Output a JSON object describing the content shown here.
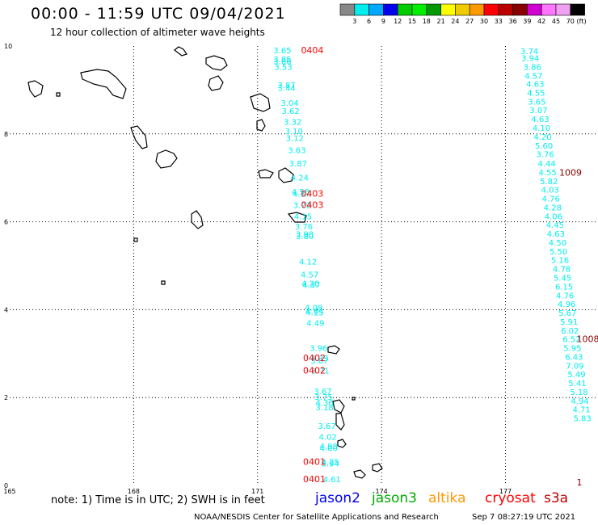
{
  "title": "00:00 - 11:59 UTC 09/04/2021",
  "subtitle": "12 hour collection of altimeter wave heights",
  "colorbar": {
    "colors": [
      "#888888",
      "#00eeee",
      "#00a8ff",
      "#0000ee",
      "#00cc00",
      "#00ee00",
      "#009900",
      "#ffff00",
      "#eecc00",
      "#ff9900",
      "#ff0000",
      "#bb0000",
      "#880000",
      "#d000d0",
      "#ff77ff",
      "#f0a0f0",
      "#000000"
    ],
    "labels": [
      "3",
      "6",
      "9",
      "12",
      "15",
      "18",
      "21",
      "24",
      "27",
      "30",
      "33",
      "36",
      "39",
      "42",
      "45",
      "70"
    ],
    "unit": "(ft)"
  },
  "axes": {
    "x_ticks": [
      "165",
      "168",
      "171",
      "174",
      "177"
    ],
    "y_ticks": [
      "10",
      "8",
      "6",
      "4",
      "2",
      "0"
    ]
  },
  "tracks": [
    {
      "mission": "altika",
      "color": "#00eeee",
      "values": [
        {
          "v": "3.65",
          "x": 171.6,
          "y": 9.83
        },
        {
          "v": "3.85",
          "x": 171.6,
          "y": 9.63
        },
        {
          "v": "3.66",
          "x": 171.6,
          "y": 9.59
        },
        {
          "v": "3.53",
          "x": 171.62,
          "y": 9.46
        },
        {
          "v": "3.87",
          "x": 171.7,
          "y": 9.04
        },
        {
          "v": "3.44",
          "x": 171.7,
          "y": 8.98
        },
        {
          "v": "3.04",
          "x": 171.78,
          "y": 8.64
        },
        {
          "v": "3.62",
          "x": 171.8,
          "y": 8.46
        },
        {
          "v": "3.32",
          "x": 171.85,
          "y": 8.21
        },
        {
          "v": "3.10",
          "x": 171.88,
          "y": 8.0
        },
        {
          "v": "3.12",
          "x": 171.9,
          "y": 7.84
        },
        {
          "v": "3.63",
          "x": 171.95,
          "y": 7.56
        },
        {
          "v": "3.87",
          "x": 171.98,
          "y": 7.26
        },
        {
          "v": "4.24",
          "x": 172.02,
          "y": 6.94
        },
        {
          "v": "4.50",
          "x": 172.04,
          "y": 6.62
        },
        {
          "v": "4.37",
          "x": 172.06,
          "y": 6.57
        },
        {
          "v": "3.72",
          "x": 172.08,
          "y": 6.31
        },
        {
          "v": "4.15",
          "x": 172.1,
          "y": 6.06
        },
        {
          "v": "3.76",
          "x": 172.12,
          "y": 5.83
        },
        {
          "v": "3.98",
          "x": 172.14,
          "y": 5.65
        },
        {
          "v": "3.80",
          "x": 172.14,
          "y": 5.61
        },
        {
          "v": "4.12",
          "x": 172.22,
          "y": 5.03
        },
        {
          "v": "4.57",
          "x": 172.26,
          "y": 4.73
        },
        {
          "v": "4.20",
          "x": 172.28,
          "y": 4.53
        },
        {
          "v": "4.37",
          "x": 172.3,
          "y": 4.49
        },
        {
          "v": "4.08",
          "x": 172.36,
          "y": 3.98
        },
        {
          "v": "4.64",
          "x": 172.38,
          "y": 3.91
        },
        {
          "v": "4.15",
          "x": 172.38,
          "y": 3.87
        },
        {
          "v": "4.49",
          "x": 172.4,
          "y": 3.63
        },
        {
          "v": "3.96",
          "x": 172.48,
          "y": 3.06
        },
        {
          "v": "4.33",
          "x": 172.5,
          "y": 2.83
        },
        {
          "v": "3.87",
          "x": 172.5,
          "y": 2.78
        },
        {
          "v": "3.71",
          "x": 172.52,
          "y": 2.55
        },
        {
          "v": "3.67",
          "x": 172.58,
          "y": 2.08
        },
        {
          "v": "3.75",
          "x": 172.6,
          "y": 1.95
        },
        {
          "v": "4.36",
          "x": 172.62,
          "y": 1.82
        },
        {
          "v": "3.18",
          "x": 172.62,
          "y": 1.71
        },
        {
          "v": "3.67",
          "x": 172.68,
          "y": 1.29
        },
        {
          "v": "4.02",
          "x": 172.7,
          "y": 1.04
        },
        {
          "v": "4.98",
          "x": 172.72,
          "y": 0.83
        },
        {
          "v": "4.00",
          "x": 172.72,
          "y": 0.78
        },
        {
          "v": "4.25",
          "x": 172.76,
          "y": 0.47
        },
        {
          "v": "3.94",
          "x": 172.76,
          "y": 0.43
        },
        {
          "v": "4.61",
          "x": 172.8,
          "y": 0.07
        }
      ]
    },
    {
      "mission": "altika",
      "color": "#00eeee",
      "values": [
        {
          "v": "3.74",
          "x": 177.58,
          "y": 9.82
        },
        {
          "v": "3.94",
          "x": 177.6,
          "y": 9.66
        },
        {
          "v": "3.86",
          "x": 177.65,
          "y": 9.46
        },
        {
          "v": "4.57",
          "x": 177.68,
          "y": 9.26
        },
        {
          "v": "4.63",
          "x": 177.72,
          "y": 9.07
        },
        {
          "v": "4.55",
          "x": 177.74,
          "y": 8.87
        },
        {
          "v": "3.65",
          "x": 177.76,
          "y": 8.67
        },
        {
          "v": "3.07",
          "x": 177.8,
          "y": 8.47
        },
        {
          "v": "4.63",
          "x": 177.84,
          "y": 8.27
        },
        {
          "v": "4.10",
          "x": 177.87,
          "y": 8.07
        },
        {
          "v": "4.20",
          "x": 177.9,
          "y": 7.87
        },
        {
          "v": "5.60",
          "x": 177.93,
          "y": 7.67
        },
        {
          "v": "3.76",
          "x": 177.96,
          "y": 7.47
        },
        {
          "v": "4.44",
          "x": 178.0,
          "y": 7.26
        },
        {
          "v": "4.55",
          "x": 178.02,
          "y": 7.06
        },
        {
          "v": "5.82",
          "x": 178.05,
          "y": 6.86
        },
        {
          "v": "4.03",
          "x": 178.08,
          "y": 6.66
        },
        {
          "v": "4.76",
          "x": 178.1,
          "y": 6.46
        },
        {
          "v": "4.28",
          "x": 178.14,
          "y": 6.26
        },
        {
          "v": "4.06",
          "x": 178.16,
          "y": 6.06
        },
        {
          "v": "4.45",
          "x": 178.2,
          "y": 5.86
        },
        {
          "v": "4.63",
          "x": 178.22,
          "y": 5.66
        },
        {
          "v": "4.50",
          "x": 178.26,
          "y": 5.46
        },
        {
          "v": "5.50",
          "x": 178.28,
          "y": 5.26
        },
        {
          "v": "5.16",
          "x": 178.32,
          "y": 5.06
        },
        {
          "v": "4.78",
          "x": 178.36,
          "y": 4.86
        },
        {
          "v": "5.45",
          "x": 178.38,
          "y": 4.66
        },
        {
          "v": "6.15",
          "x": 178.42,
          "y": 4.46
        },
        {
          "v": "4.76",
          "x": 178.44,
          "y": 4.26
        },
        {
          "v": "4.96",
          "x": 178.48,
          "y": 4.06
        },
        {
          "v": "5.67",
          "x": 178.5,
          "y": 3.86
        },
        {
          "v": "5.91",
          "x": 178.54,
          "y": 3.66
        },
        {
          "v": "6.02",
          "x": 178.56,
          "y": 3.46
        },
        {
          "v": "6.52",
          "x": 178.6,
          "y": 3.26
        },
        {
          "v": "5.95",
          "x": 178.62,
          "y": 3.06
        },
        {
          "v": "6.43",
          "x": 178.66,
          "y": 2.86
        },
        {
          "v": "7.09",
          "x": 178.68,
          "y": 2.66
        },
        {
          "v": "5.49",
          "x": 178.72,
          "y": 2.46
        },
        {
          "v": "5.41",
          "x": 178.74,
          "y": 2.26
        },
        {
          "v": "5.18",
          "x": 178.78,
          "y": 2.06
        },
        {
          "v": "4.94",
          "x": 178.8,
          "y": 1.86
        },
        {
          "v": "4.71",
          "x": 178.84,
          "y": 1.66
        },
        {
          "v": "5.83",
          "x": 178.86,
          "y": 1.46
        }
      ]
    }
  ],
  "time_labels": [
    {
      "text": "0404",
      "color": "#ff0000",
      "x": 172.05,
      "y": 9.83
    },
    {
      "text": "0403",
      "color": "#ff0000",
      "x": 172.05,
      "y": 6.57
    },
    {
      "text": "0403",
      "color": "#ff0000",
      "x": 172.05,
      "y": 6.31
    },
    {
      "text": "0402",
      "color": "#ff0000",
      "x": 172.1,
      "y": 2.83
    },
    {
      "text": "0402",
      "color": "#ff0000",
      "x": 172.1,
      "y": 2.55
    },
    {
      "text": "0401",
      "color": "#ff0000",
      "x": 172.1,
      "y": 0.47
    },
    {
      "text": "0401",
      "color": "#ff0000",
      "x": 172.1,
      "y": 0.07
    },
    {
      "text": "1009",
      "color": "#880000",
      "x": 178.3,
      "y": 7.05
    },
    {
      "text": "1008",
      "color": "#880000",
      "x": 178.72,
      "y": 3.26
    },
    {
      "text": "1",
      "color": "#880000",
      "x": 178.72,
      "y": 0.0
    }
  ],
  "note": "note:  1) Time is in UTC;  2) SWH is in feet",
  "missions": [
    {
      "name": "jason2",
      "color": "#0000ee"
    },
    {
      "name": "jason3",
      "color": "#00aa00"
    },
    {
      "name": "altika",
      "color": "#ff9900"
    },
    {
      "name": "cryosat",
      "color": "#ff0000"
    },
    {
      "name": "s3a",
      "color": "#bb0000"
    }
  ],
  "credit": "NOAA/NESDIS Center for Satellite Applications and Research",
  "timestamp": "Sep  7 08:27:19 UTC 2021"
}
